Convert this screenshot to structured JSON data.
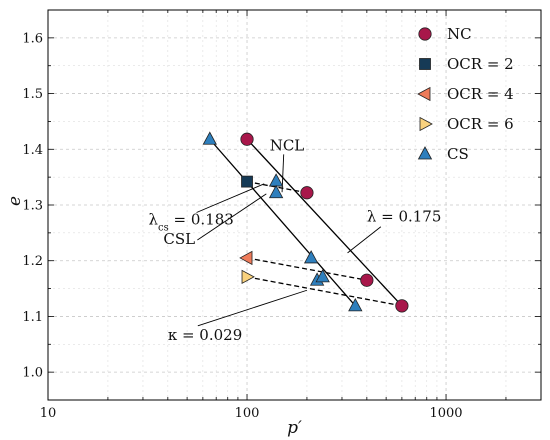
{
  "chart_data": {
    "type": "scatter",
    "xlabel": "p′",
    "ylabel": "e",
    "xscale": "log",
    "xlim": [
      10,
      3000
    ],
    "ylim": [
      0.95,
      1.65
    ],
    "x_tick_labels": [
      "10",
      "100",
      "1000"
    ],
    "y_tick_labels": [
      "1.0",
      "1.1",
      "1.2",
      "1.3",
      "1.4",
      "1.5",
      "1.6"
    ],
    "y_ticks": [
      1.0,
      1.1,
      1.2,
      1.3,
      1.4,
      1.5,
      1.6
    ],
    "grid": true,
    "legend_position": "top-right",
    "series": [
      {
        "name": "NC",
        "marker": "circle",
        "color": "#a8174a",
        "points": [
          [
            100,
            1.418
          ],
          [
            200,
            1.322
          ],
          [
            400,
            1.165
          ],
          [
            600,
            1.119
          ]
        ]
      },
      {
        "name": "OCR = 2",
        "marker": "square",
        "color": "#163a56",
        "points": [
          [
            100,
            1.342
          ]
        ]
      },
      {
        "name": "OCR = 4",
        "marker": "triangle-left",
        "color": "#ee7b5a",
        "points": [
          [
            100,
            1.205
          ]
        ]
      },
      {
        "name": "OCR = 6",
        "marker": "triangle-right",
        "color": "#f9d27e",
        "points": [
          [
            100,
            1.171
          ]
        ]
      },
      {
        "name": "CS",
        "marker": "triangle-up",
        "color": "#2e7fbd",
        "points": [
          [
            65,
            1.418
          ],
          [
            140,
            1.343
          ],
          [
            140,
            1.322
          ],
          [
            210,
            1.205
          ],
          [
            225,
            1.165
          ],
          [
            240,
            1.171
          ],
          [
            350,
            1.119
          ]
        ]
      }
    ],
    "lines": [
      {
        "label": "NCL",
        "style": "solid",
        "points": [
          [
            100,
            1.418
          ],
          [
            600,
            1.119
          ]
        ]
      },
      {
        "label": "CSL",
        "style": "solid",
        "points": [
          [
            65,
            1.418
          ],
          [
            350,
            1.119
          ]
        ]
      },
      {
        "label": "",
        "style": "dashed",
        "points": [
          [
            100,
            1.342
          ],
          [
            200,
            1.322
          ]
        ]
      },
      {
        "label": "",
        "style": "dashed",
        "points": [
          [
            100,
            1.205
          ],
          [
            400,
            1.165
          ]
        ]
      },
      {
        "label": "",
        "style": "dashed",
        "points": [
          [
            100,
            1.171
          ],
          [
            600,
            1.119
          ]
        ]
      }
    ],
    "annotations": [
      {
        "text": "NCL",
        "anchor": [
          130,
          1.398
        ],
        "target": [
          150,
          1.323
        ]
      },
      {
        "text": "λ = 0.175",
        "anchor": [
          400,
          1.27
        ],
        "target": [
          320,
          1.214
        ]
      },
      {
        "text": "CSL",
        "anchor": [
          38,
          1.23
        ],
        "target": [
          125,
          1.32
        ]
      },
      {
        "text": "κ = 0.029",
        "anchor": [
          40,
          1.058
        ],
        "target": [
          200,
          1.147
        ]
      }
    ],
    "lambda_cs_label": {
      "symbol": "λ",
      "subscript": "cs",
      "value": " = 0.183",
      "anchor": [
        32,
        1.265
      ],
      "target": [
        122,
        1.338
      ]
    }
  }
}
